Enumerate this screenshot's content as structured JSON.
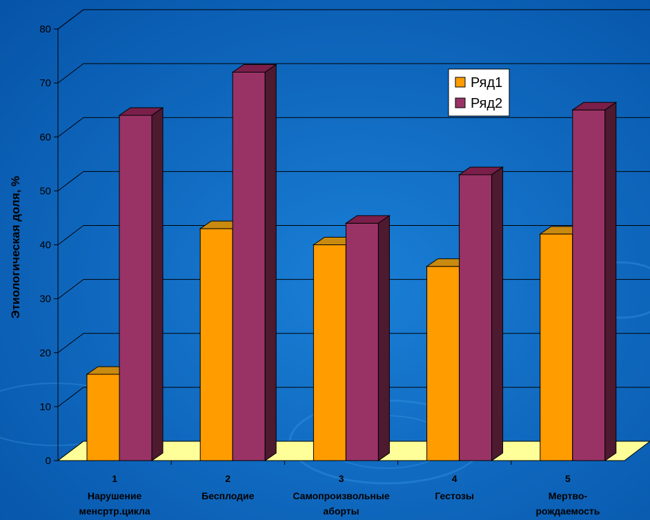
{
  "chart_data": {
    "type": "bar",
    "ylabel": "Этиологическая доля, %",
    "ylim": [
      0,
      80
    ],
    "yticks": [
      0,
      10,
      20,
      30,
      40,
      50,
      60,
      70,
      80
    ],
    "grid": true,
    "legend_position": "top-right",
    "categories": [
      {
        "num": "1",
        "line1": "Нарушение",
        "line2": "менсртр.цикла"
      },
      {
        "num": "2",
        "line1": "Бесплодие",
        "line2": ""
      },
      {
        "num": "3",
        "line1": "Самопроизвольные",
        "line2": "аборты"
      },
      {
        "num": "4",
        "line1": "Гестозы",
        "line2": ""
      },
      {
        "num": "5",
        "line1": "Мертво-",
        "line2": "рождаемость"
      }
    ],
    "series": [
      {
        "name": "Ряд1",
        "color": "#ff9c00",
        "top": "#c98a10",
        "side": "#a06a00",
        "values": [
          16,
          43,
          40,
          36,
          42
        ]
      },
      {
        "name": "Ряд2",
        "color": "#993366",
        "top": "#7a1f4a",
        "side": "#4d1a30",
        "values": [
          64,
          72,
          44,
          53,
          65
        ]
      }
    ]
  }
}
